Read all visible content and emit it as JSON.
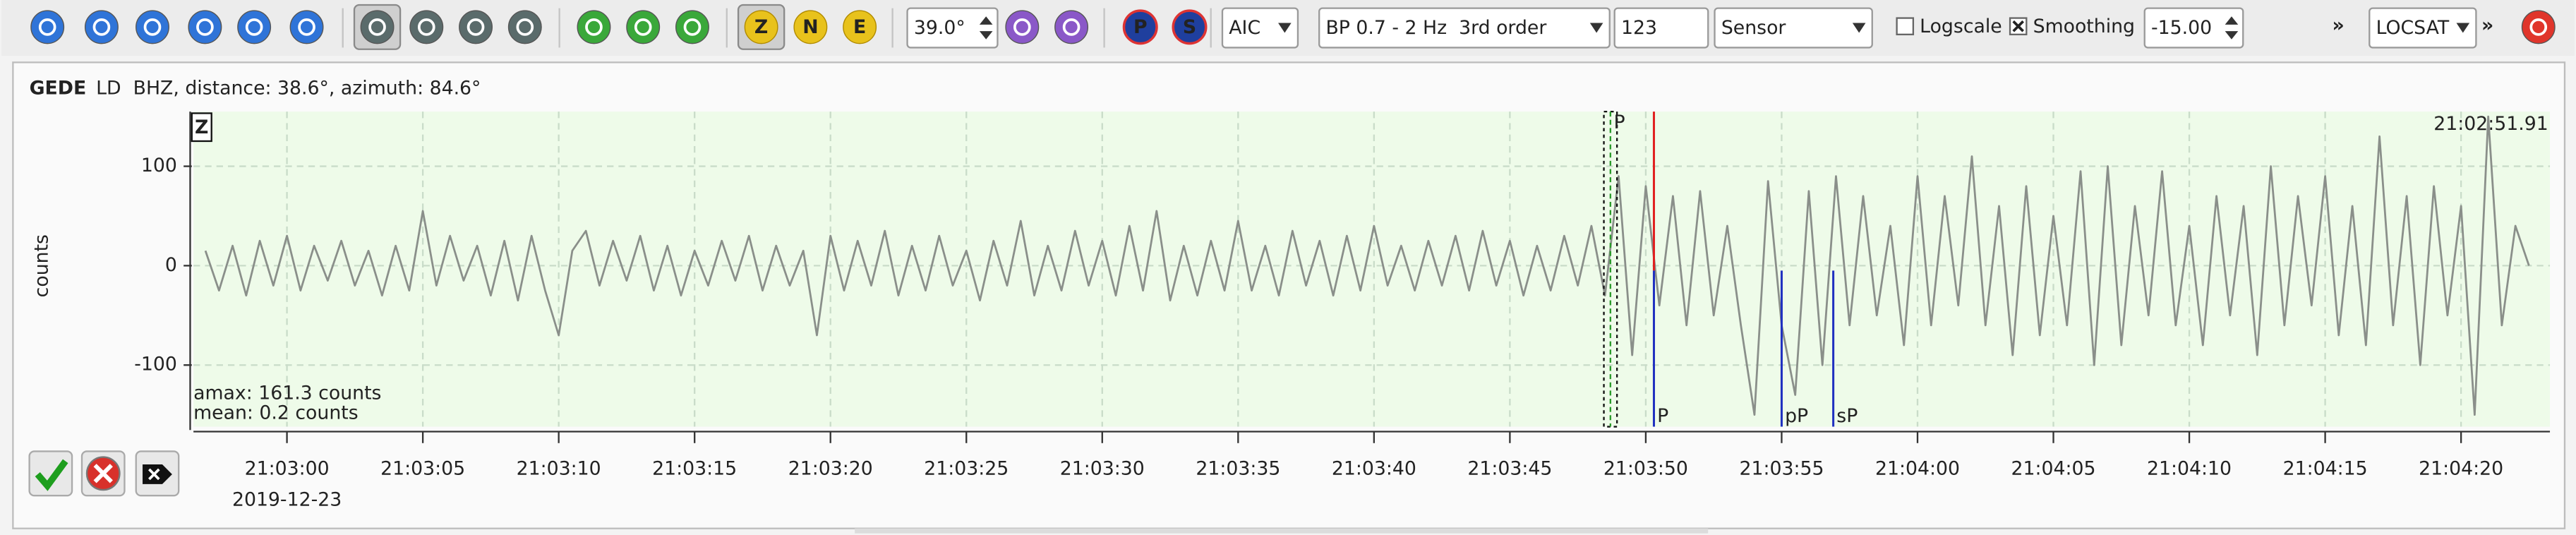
{
  "toolbar": {
    "ratio": "39.0°",
    "method": "AIC",
    "filter": "BP 0.7 - 2 Hz  3rd order",
    "count": "123",
    "unit": "Sensor",
    "logscale": {
      "label": "Logscale",
      "checked": false
    },
    "smoothing": {
      "label": "Smoothing",
      "checked": true
    },
    "smoothing_value": "-15.00",
    "locator": "LOCSAT",
    "components": [
      "Z",
      "N",
      "E"
    ],
    "phases": [
      "P",
      "S"
    ],
    "overflow": [
      "»",
      "»"
    ]
  },
  "header": {
    "station": "GEDE",
    "info": "LD  BHZ, distance: 38.6°, azimuth: 84.6°"
  },
  "trace": {
    "component": "Z",
    "ylabel": "counts",
    "time_label": "21:02:51.91",
    "amax": "amax: 161.3 counts",
    "mean": "mean: 0.2 counts",
    "date": "2019-12-23",
    "ylim": [
      -162,
      155
    ],
    "yticks": [
      100,
      0,
      -100
    ],
    "xlim": [
      75776.56,
      75863.27
    ],
    "xticks": [
      {
        "value": 75780,
        "label": "21:03:00"
      },
      {
        "value": 75785,
        "label": "21:03:05"
      },
      {
        "value": 75790,
        "label": "21:03:10"
      },
      {
        "value": 75795,
        "label": "21:03:15"
      },
      {
        "value": 75800,
        "label": "21:03:20"
      },
      {
        "value": 75805,
        "label": "21:03:25"
      },
      {
        "value": 75810,
        "label": "21:03:30"
      },
      {
        "value": 75815,
        "label": "21:03:35"
      },
      {
        "value": 75820,
        "label": "21:03:40"
      },
      {
        "value": 75825,
        "label": "21:03:45"
      },
      {
        "value": 75830,
        "label": "21:03:50"
      },
      {
        "value": 75835,
        "label": "21:03:55"
      },
      {
        "value": 75840,
        "label": "21:04:00"
      },
      {
        "value": 75845,
        "label": "21:04:05"
      },
      {
        "value": 75850,
        "label": "21:04:10"
      },
      {
        "value": 75855,
        "label": "21:04:15"
      },
      {
        "value": 75860,
        "label": "21:04:20"
      }
    ],
    "start": 75777,
    "interval": 0.5,
    "values": [
      15,
      -25,
      20,
      -30,
      25,
      -20,
      30,
      -25,
      20,
      -15,
      25,
      -20,
      15,
      -30,
      20,
      -25,
      55,
      -20,
      30,
      -15,
      20,
      -30,
      25,
      -35,
      30,
      -25,
      -70,
      15,
      35,
      -20,
      25,
      -15,
      30,
      -25,
      20,
      -30,
      15,
      -20,
      25,
      -15,
      30,
      -25,
      20,
      -20,
      15,
      -70,
      30,
      -25,
      25,
      -20,
      35,
      -30,
      20,
      -25,
      30,
      -20,
      15,
      -35,
      25,
      -20,
      45,
      -30,
      20,
      -25,
      35,
      -20,
      25,
      -30,
      40,
      -25,
      55,
      -35,
      20,
      -30,
      25,
      -25,
      45,
      -25,
      20,
      -30,
      35,
      -20,
      25,
      -30,
      30,
      -25,
      40,
      -20,
      20,
      -25,
      25,
      -20,
      30,
      -25,
      35,
      -20,
      25,
      -30,
      20,
      -25,
      30,
      -20,
      40,
      -30,
      90,
      -90,
      80,
      -40,
      70,
      -60,
      75,
      -50,
      40,
      -60,
      -150,
      85,
      -60,
      -130,
      75,
      -100,
      90,
      -60,
      70,
      -50,
      40,
      -80,
      90,
      -60,
      70,
      -40,
      110,
      -60,
      60,
      -90,
      80,
      -70,
      50,
      -60,
      95,
      -100,
      100,
      -80,
      60,
      -50,
      95,
      -60,
      40,
      -80,
      70,
      -50,
      60,
      -90,
      100,
      -60,
      70,
      -40,
      90,
      -70,
      60,
      -80,
      130,
      -60,
      70,
      -100,
      80,
      -50,
      60,
      -150,
      150,
      -60,
      40,
      0
    ],
    "theoretical": {
      "label": "P",
      "time": 75828.7
    },
    "picks": [
      {
        "phase": "P",
        "time": 75830.3,
        "manual": true
      },
      {
        "phase": "pP",
        "time": 75835.0,
        "manual": false
      },
      {
        "phase": "sP",
        "time": 75836.9,
        "manual": false
      }
    ]
  }
}
